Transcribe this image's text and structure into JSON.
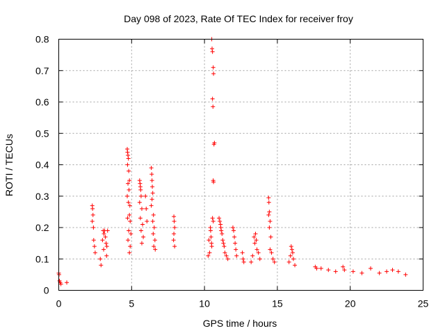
{
  "chart_data": {
    "type": "scatter",
    "title": "Day 098 of 2023, Rate Of TEC Index for receiver froy",
    "xlabel": "GPS time / hours",
    "ylabel": "ROTI / TECUs",
    "xlim": [
      0,
      25
    ],
    "ylim": [
      0,
      0.8
    ],
    "xticks": [
      "0",
      "5",
      "10",
      "15",
      "20",
      "25"
    ],
    "yticks": [
      "0",
      "0.1",
      "0.2",
      "0.3",
      "0.4",
      "0.5",
      "0.6",
      "0.7",
      "0.8"
    ],
    "grid": true,
    "marker": "+",
    "color": "#ff0000",
    "series": [
      {
        "points": [
          [
            0.0,
            0.055
          ],
          [
            0.02,
            0.05
          ],
          [
            0.05,
            0.03
          ],
          [
            0.1,
            0.025
          ],
          [
            0.15,
            0.02
          ],
          [
            0.55,
            0.025
          ],
          [
            2.3,
            0.27
          ],
          [
            2.32,
            0.26
          ],
          [
            2.35,
            0.24
          ],
          [
            2.3,
            0.22
          ],
          [
            2.38,
            0.2
          ],
          [
            2.4,
            0.16
          ],
          [
            2.45,
            0.14
          ],
          [
            2.5,
            0.12
          ],
          [
            3.05,
            0.19
          ],
          [
            3.1,
            0.18
          ],
          [
            3.15,
            0.19
          ],
          [
            3.2,
            0.17
          ],
          [
            3.25,
            0.15
          ],
          [
            3.3,
            0.14
          ],
          [
            3.35,
            0.19
          ],
          [
            3.0,
            0.16
          ],
          [
            3.08,
            0.13
          ],
          [
            3.28,
            0.11
          ],
          [
            2.85,
            0.1
          ],
          [
            2.9,
            0.08
          ],
          [
            4.7,
            0.45
          ],
          [
            4.72,
            0.44
          ],
          [
            4.75,
            0.43
          ],
          [
            4.78,
            0.42
          ],
          [
            4.72,
            0.4
          ],
          [
            4.8,
            0.38
          ],
          [
            4.85,
            0.35
          ],
          [
            4.75,
            0.34
          ],
          [
            4.82,
            0.32
          ],
          [
            4.7,
            0.3
          ],
          [
            4.78,
            0.28
          ],
          [
            4.88,
            0.27
          ],
          [
            4.85,
            0.24
          ],
          [
            4.72,
            0.23
          ],
          [
            4.9,
            0.22
          ],
          [
            4.8,
            0.19
          ],
          [
            4.95,
            0.18
          ],
          [
            4.75,
            0.16
          ],
          [
            4.9,
            0.14
          ],
          [
            4.85,
            0.12
          ],
          [
            5.55,
            0.35
          ],
          [
            5.58,
            0.34
          ],
          [
            5.6,
            0.33
          ],
          [
            5.62,
            0.32
          ],
          [
            5.65,
            0.3
          ],
          [
            5.55,
            0.28
          ],
          [
            5.7,
            0.26
          ],
          [
            5.6,
            0.23
          ],
          [
            5.75,
            0.21
          ],
          [
            5.65,
            0.19
          ],
          [
            5.8,
            0.17
          ],
          [
            5.7,
            0.15
          ],
          [
            5.95,
            0.3
          ],
          [
            6.0,
            0.26
          ],
          [
            6.05,
            0.22
          ],
          [
            6.35,
            0.39
          ],
          [
            6.38,
            0.37
          ],
          [
            6.4,
            0.35
          ],
          [
            6.42,
            0.33
          ],
          [
            6.45,
            0.31
          ],
          [
            6.4,
            0.29
          ],
          [
            6.35,
            0.27
          ],
          [
            6.5,
            0.24
          ],
          [
            6.45,
            0.22
          ],
          [
            6.55,
            0.2
          ],
          [
            6.48,
            0.18
          ],
          [
            6.6,
            0.16
          ],
          [
            6.52,
            0.14
          ],
          [
            6.62,
            0.13
          ],
          [
            7.9,
            0.235
          ],
          [
            7.92,
            0.22
          ],
          [
            7.95,
            0.2
          ],
          [
            7.9,
            0.18
          ],
          [
            7.88,
            0.16
          ],
          [
            7.95,
            0.14
          ],
          [
            10.5,
            0.8
          ],
          [
            10.52,
            0.77
          ],
          [
            10.55,
            0.76
          ],
          [
            10.6,
            0.71
          ],
          [
            10.62,
            0.69
          ],
          [
            10.55,
            0.61
          ],
          [
            10.58,
            0.585
          ],
          [
            10.68,
            0.47
          ],
          [
            10.65,
            0.465
          ],
          [
            10.6,
            0.35
          ],
          [
            10.62,
            0.345
          ],
          [
            10.4,
            0.2
          ],
          [
            10.42,
            0.19
          ],
          [
            10.45,
            0.17
          ],
          [
            10.48,
            0.15
          ],
          [
            10.5,
            0.14
          ],
          [
            10.35,
            0.12
          ],
          [
            10.55,
            0.23
          ],
          [
            10.6,
            0.22
          ],
          [
            10.3,
            0.16
          ],
          [
            10.25,
            0.11
          ],
          [
            11.0,
            0.23
          ],
          [
            11.05,
            0.22
          ],
          [
            11.1,
            0.21
          ],
          [
            11.12,
            0.2
          ],
          [
            11.15,
            0.19
          ],
          [
            11.2,
            0.18
          ],
          [
            11.25,
            0.16
          ],
          [
            11.3,
            0.15
          ],
          [
            11.35,
            0.14
          ],
          [
            11.4,
            0.12
          ],
          [
            11.5,
            0.11
          ],
          [
            11.6,
            0.1
          ],
          [
            11.95,
            0.2
          ],
          [
            12.0,
            0.19
          ],
          [
            12.05,
            0.17
          ],
          [
            12.1,
            0.15
          ],
          [
            12.15,
            0.13
          ],
          [
            12.2,
            0.11
          ],
          [
            12.6,
            0.12
          ],
          [
            12.65,
            0.1
          ],
          [
            12.7,
            0.09
          ],
          [
            13.4,
            0.17
          ],
          [
            13.45,
            0.15
          ],
          [
            13.5,
            0.18
          ],
          [
            13.55,
            0.16
          ],
          [
            13.6,
            0.13
          ],
          [
            13.7,
            0.12
          ],
          [
            13.8,
            0.1
          ],
          [
            13.3,
            0.11
          ],
          [
            13.2,
            0.09
          ],
          [
            14.4,
            0.295
          ],
          [
            14.42,
            0.28
          ],
          [
            14.45,
            0.25
          ],
          [
            14.4,
            0.24
          ],
          [
            14.5,
            0.22
          ],
          [
            14.45,
            0.2
          ],
          [
            14.55,
            0.17
          ],
          [
            14.5,
            0.13
          ],
          [
            14.6,
            0.12
          ],
          [
            14.7,
            0.1
          ],
          [
            14.8,
            0.09
          ],
          [
            15.95,
            0.14
          ],
          [
            16.0,
            0.13
          ],
          [
            16.05,
            0.12
          ],
          [
            15.9,
            0.11
          ],
          [
            16.1,
            0.1
          ],
          [
            15.8,
            0.09
          ],
          [
            16.2,
            0.08
          ],
          [
            17.6,
            0.075
          ],
          [
            17.7,
            0.07
          ],
          [
            18.0,
            0.07
          ],
          [
            18.5,
            0.065
          ],
          [
            19.0,
            0.06
          ],
          [
            19.5,
            0.075
          ],
          [
            19.6,
            0.065
          ],
          [
            20.2,
            0.06
          ],
          [
            20.8,
            0.055
          ],
          [
            21.4,
            0.07
          ],
          [
            22.0,
            0.055
          ],
          [
            22.5,
            0.06
          ],
          [
            22.9,
            0.065
          ],
          [
            23.3,
            0.06
          ],
          [
            23.8,
            0.05
          ]
        ]
      }
    ]
  }
}
